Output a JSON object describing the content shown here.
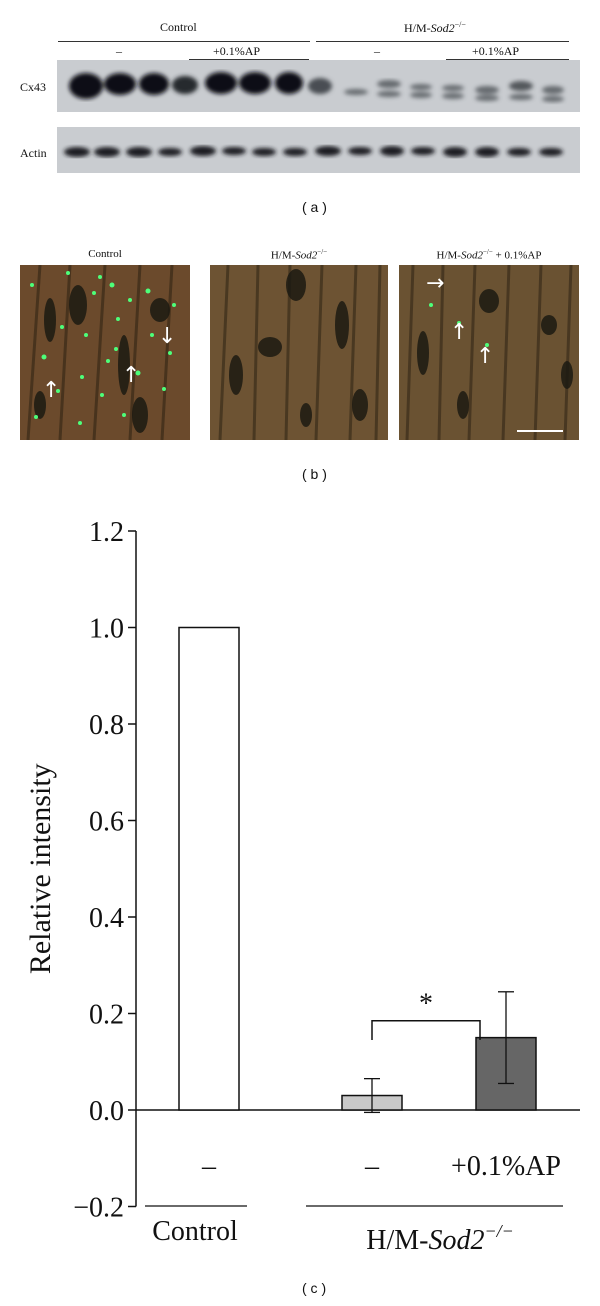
{
  "panel_a": {
    "group_control": "Control",
    "group_ko_prefix": "H/M-",
    "group_ko_gene": "Sod2",
    "group_ko_sup": "−/−",
    "sub_minus": "–",
    "sub_ap": "+0.1%AP",
    "row_cx43": "Cx43",
    "row_actin": "Actin",
    "caption": "( a )"
  },
  "panel_b": {
    "title_control": "Control",
    "title_ko_prefix": "H/M-",
    "title_ko_gene": "Sod2",
    "title_ko_sup": "−/−",
    "title_ap_suffix": "+ 0.1%AP",
    "caption": "( b )"
  },
  "panel_c": {
    "caption": "( c )",
    "significance": "*"
  },
  "chart_data": {
    "type": "bar",
    "ylabel": "Relative intensity",
    "ylim": [
      -0.2,
      1.2
    ],
    "yticks": [
      "1.2",
      "1.0",
      "0.8",
      "0.6",
      "0.4",
      "0.2",
      "0.0",
      "−0.2"
    ],
    "categories": [
      "–",
      "–",
      "+0.1%AP"
    ],
    "groups": [
      "Control",
      "H/M-Sod2−/−"
    ],
    "values": [
      1.0,
      0.03,
      0.15
    ],
    "errors": [
      0,
      0.035,
      0.095
    ],
    "colors": [
      "#ffffff",
      "#c9c9c9",
      "#666666"
    ],
    "group_ko_prefix": "H/M-",
    "group_ko_gene": "Sod2",
    "group_ko_sup": "−/−"
  }
}
